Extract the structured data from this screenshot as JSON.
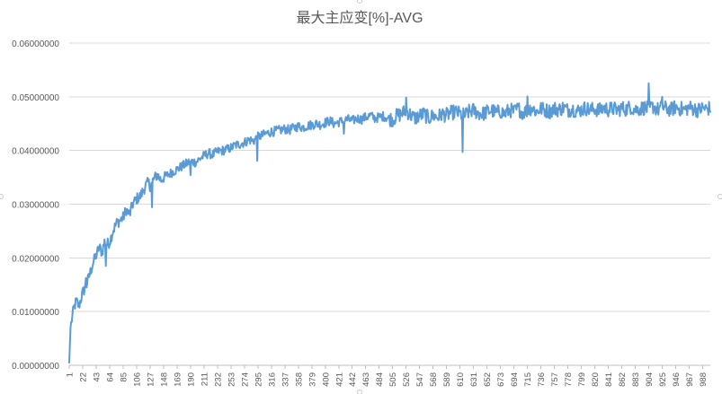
{
  "chart_data": {
    "type": "line",
    "title": "最大主应变[%]-AVG",
    "xlabel": "",
    "ylabel": "",
    "ylim": [
      0,
      0.06
    ],
    "xlim": [
      1,
      1000
    ],
    "y_ticks": [
      "0.00000000",
      "0.01000000",
      "0.02000000",
      "0.03000000",
      "0.04000000",
      "0.05000000",
      "0.06000000"
    ],
    "x_ticks": [
      1,
      22,
      43,
      64,
      85,
      106,
      127,
      148,
      169,
      190,
      211,
      232,
      253,
      274,
      295,
      316,
      337,
      358,
      379,
      400,
      421,
      442,
      463,
      484,
      505,
      526,
      547,
      568,
      589,
      610,
      631,
      652,
      673,
      694,
      715,
      736,
      757,
      778,
      799,
      820,
      841,
      862,
      883,
      904,
      925,
      946,
      967,
      988
    ],
    "grid": true,
    "legend": "none",
    "series": [
      {
        "color": "#5b9bd5",
        "x": [
          1,
          3,
          5,
          8,
          12,
          16,
          22,
          28,
          33,
          38,
          43,
          48,
          52,
          56,
          60,
          64,
          69,
          75,
          80,
          85,
          90,
          95,
          100,
          106,
          112,
          118,
          124,
          127,
          132,
          138,
          144,
          148,
          155,
          162,
          169,
          176,
          183,
          190,
          198,
          205,
          211,
          218,
          225,
          232,
          240,
          247,
          253,
          260,
          267,
          274,
          281,
          288,
          295,
          302,
          309,
          316,
          323,
          330,
          337,
          344,
          351,
          358,
          365,
          372,
          379,
          386,
          393,
          400,
          407,
          414,
          421,
          428,
          435,
          442,
          449,
          456,
          463,
          470,
          477,
          484,
          491,
          498,
          505,
          512,
          519,
          526,
          533,
          540,
          547,
          554,
          561,
          568,
          575,
          582,
          589,
          596,
          603,
          610,
          617,
          624,
          631,
          638,
          645,
          652,
          659,
          666,
          673,
          680,
          687,
          694,
          701,
          708,
          715,
          722,
          729,
          736,
          743,
          750,
          757,
          764,
          771,
          778,
          785,
          792,
          799,
          806,
          813,
          820,
          827,
          834,
          841,
          848,
          855,
          862,
          869,
          876,
          883,
          890,
          897,
          904,
          911,
          918,
          925,
          932,
          939,
          946,
          953,
          960,
          967,
          974,
          981,
          988,
          995,
          1000
        ],
        "y": [
          0.0005,
          0.007,
          0.0085,
          0.0105,
          0.012,
          0.011,
          0.0135,
          0.015,
          0.017,
          0.019,
          0.0205,
          0.022,
          0.021,
          0.023,
          0.0225,
          0.023,
          0.025,
          0.0265,
          0.027,
          0.0275,
          0.029,
          0.028,
          0.03,
          0.031,
          0.0315,
          0.033,
          0.034,
          0.0335,
          0.0345,
          0.0355,
          0.0345,
          0.035,
          0.0355,
          0.036,
          0.0365,
          0.037,
          0.0375,
          0.038,
          0.0378,
          0.0385,
          0.039,
          0.0395,
          0.0392,
          0.0398,
          0.04,
          0.0402,
          0.0405,
          0.041,
          0.0412,
          0.0415,
          0.042,
          0.0418,
          0.0425,
          0.0428,
          0.0432,
          0.0435,
          0.0436,
          0.0438,
          0.044,
          0.0438,
          0.0442,
          0.0445,
          0.0443,
          0.0446,
          0.0448,
          0.045,
          0.0448,
          0.0452,
          0.0455,
          0.045,
          0.0453,
          0.0455,
          0.0458,
          0.0455,
          0.046,
          0.0458,
          0.0462,
          0.0465,
          0.046,
          0.0462,
          0.0464,
          0.046,
          0.0458,
          0.0465,
          0.0468,
          0.0475,
          0.0466,
          0.046,
          0.0465,
          0.0468,
          0.046,
          0.0465,
          0.0462,
          0.0468,
          0.0466,
          0.047,
          0.0472,
          0.0468,
          0.0465,
          0.0472,
          0.0475,
          0.047,
          0.0468,
          0.0472,
          0.0475,
          0.047,
          0.0473,
          0.0468,
          0.0476,
          0.0472,
          0.0478,
          0.047,
          0.0475,
          0.048,
          0.0472,
          0.0478,
          0.0475,
          0.0473,
          0.0478,
          0.0476,
          0.048,
          0.0475,
          0.0478,
          0.0473,
          0.0476,
          0.0479,
          0.0475,
          0.0478,
          0.0474,
          0.048,
          0.0476,
          0.0478,
          0.0475,
          0.0479,
          0.0477,
          0.0481,
          0.0476,
          0.0478,
          0.048,
          0.0477,
          0.0482,
          0.0476,
          0.048,
          0.0478,
          0.0476,
          0.0481,
          0.0478,
          0.0476,
          0.048,
          0.0478,
          0.0475,
          0.0479,
          0.0477,
          0.048
        ]
      }
    ]
  }
}
